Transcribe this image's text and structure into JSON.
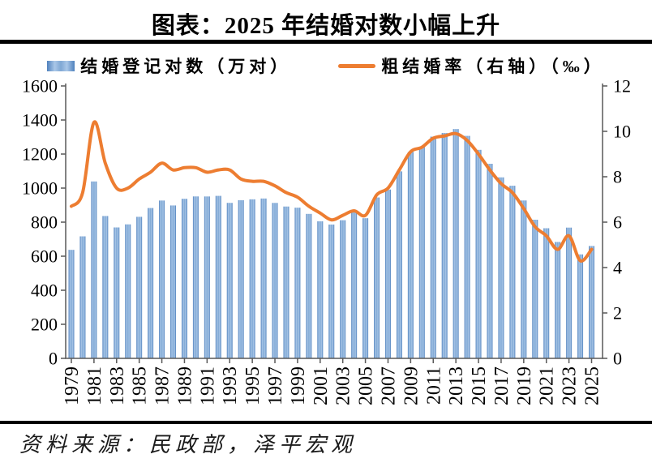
{
  "page": {
    "title": "图表：2025 年结婚对数小幅上升",
    "source": "资料来源：民政部，泽平宏观"
  },
  "legend": {
    "bar_label": "结婚登记对数（万对）",
    "line_label": "粗结婚率（右轴）（‰）"
  },
  "chart_data": {
    "type": "combo-bar-line",
    "title": "图表：2025 年结婚对数小幅上升",
    "categories": [
      1979,
      1980,
      1981,
      1982,
      1983,
      1984,
      1985,
      1986,
      1987,
      1988,
      1989,
      1990,
      1991,
      1992,
      1993,
      1994,
      1995,
      1996,
      1997,
      1998,
      1999,
      2000,
      2001,
      2002,
      2003,
      2004,
      2005,
      2006,
      2007,
      2008,
      2009,
      2010,
      2011,
      2012,
      2013,
      2014,
      2015,
      2016,
      2017,
      2018,
      2019,
      2020,
      2021,
      2022,
      2023,
      2024,
      2025
    ],
    "series": [
      {
        "name": "结婚登记对数（万对）",
        "type": "bar",
        "axis": "left",
        "color_edge": "#4f81bd",
        "color_light": "#aac7e8",
        "color_mid": "#7fa8d4",
        "values": [
          637.3,
          716.6,
          1039.0,
          836.0,
          769.0,
          787.0,
          831.3,
          883.0,
          927.0,
          898.0,
          937.1,
          951.1,
          950.9,
          954.4,
          913.2,
          929.0,
          934.1,
          938.9,
          913.0,
          891.8,
          885.0,
          848.5,
          805.0,
          786.0,
          811.4,
          867.0,
          823.1,
          945.0,
          991.4,
          1098.3,
          1212.2,
          1241.0,
          1302.4,
          1323.6,
          1346.9,
          1306.7,
          1224.7,
          1142.8,
          1063.1,
          1013.9,
          927.3,
          814.3,
          764.3,
          683.5,
          768.0,
          610.6,
          660.0
        ]
      },
      {
        "name": "粗结婚率（右轴）（‰）",
        "type": "line",
        "axis": "right",
        "color": "#ED7D31",
        "values": [
          6.7,
          7.3,
          10.4,
          8.6,
          7.5,
          7.5,
          7.9,
          8.2,
          8.6,
          8.3,
          8.4,
          8.4,
          8.2,
          8.3,
          8.3,
          7.9,
          7.8,
          7.8,
          7.6,
          7.3,
          7.1,
          6.7,
          6.4,
          6.1,
          6.3,
          6.5,
          6.3,
          7.2,
          7.5,
          8.3,
          9.1,
          9.3,
          9.7,
          9.8,
          9.9,
          9.6,
          9.0,
          8.3,
          7.7,
          7.3,
          6.6,
          5.8,
          5.4,
          4.8,
          5.4,
          4.3,
          4.8
        ]
      }
    ],
    "left_axis": {
      "min": 0,
      "max": 1600,
      "step": 200,
      "ticks": [
        0,
        200,
        400,
        600,
        800,
        1000,
        1200,
        1400,
        1600
      ]
    },
    "right_axis": {
      "min": 0,
      "max": 12,
      "step": 2,
      "ticks": [
        0,
        2,
        4,
        6,
        8,
        10,
        12
      ]
    },
    "x_tick_labels": [
      "1979",
      "1981",
      "1983",
      "1985",
      "1987",
      "1989",
      "1991",
      "1993",
      "1995",
      "1997",
      "1999",
      "2001",
      "2003",
      "2005",
      "2007",
      "2009",
      "2011",
      "2013",
      "2015",
      "2017",
      "2019",
      "2021",
      "2023",
      "2025"
    ],
    "grid": false,
    "legend_position": "top",
    "xlabel": "",
    "ylabel_left": "结婚登记对数（万对）",
    "ylabel_right": "粗结婚率（‰）"
  }
}
